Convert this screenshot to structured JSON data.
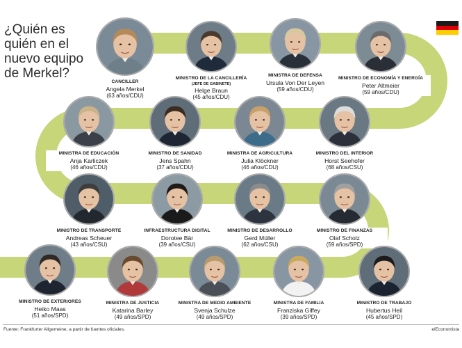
{
  "title_lines": [
    "¿Quién es",
    "quién en el",
    "nuevo equipo",
    "de Merkel?"
  ],
  "colors": {
    "path": "#c6d678",
    "flag_black": "#1a1a1a",
    "flag_red": "#dd0000",
    "flag_gold": "#ffce00",
    "photo_border": "#a9a9a9"
  },
  "people": [
    {
      "role": "CANCILLER",
      "subrole": "",
      "name": "Angela Merkel",
      "info": "(63 años/CDU)",
      "icon": "portrait-merkel"
    },
    {
      "role": "MINISTRO DE LA CANCILLERÍA",
      "subrole": "(JEFE DE GABINETE)",
      "name": "Helge Braun",
      "info": "(45 años/CDU)",
      "icon": "portrait-braun"
    },
    {
      "role": "MINISTRA DE DEFENSA",
      "subrole": "",
      "name": "Ursula Von Der Leyen",
      "info": "(59 años/CDU)",
      "icon": "portrait-von-der-leyen"
    },
    {
      "role": "MINISTRO DE ECONOMÍA Y ENERGÍA",
      "subrole": "",
      "name": "Peter Altmeier",
      "info": "(59 años/CDU)",
      "icon": "portrait-altmeier"
    },
    {
      "role": "MINISTRA DE EDUCACIÓN",
      "subrole": "",
      "name": "Anja Karliczek",
      "info": "(46 años/CDU)",
      "icon": "portrait-karliczek"
    },
    {
      "role": "MINISTRO DE SANIDAD",
      "subrole": "",
      "name": "Jens Spahn",
      "info": "(37 años/CDU)",
      "icon": "portrait-spahn"
    },
    {
      "role": "MINISTRA DE AGRICULTURA",
      "subrole": "",
      "name": "Julia Klöckner",
      "info": "(46 años/CDU)",
      "icon": "portrait-kloeckner"
    },
    {
      "role": "MINISTRO DEL INTERIOR",
      "subrole": "",
      "name": "Horst Seehofer",
      "info": "(68 años/CSU)",
      "icon": "portrait-seehofer"
    },
    {
      "role": "MINISTRO DE TRANSPORTE",
      "subrole": "",
      "name": "Andreas Scheuer",
      "info": "(43 años/CSU)",
      "icon": "portrait-scheuer"
    },
    {
      "role": "INFRAESTRUCTURA DIGITAL",
      "subrole": "",
      "name": "Dorotee Bär",
      "info": "(39 años/CSU)",
      "icon": "portrait-baer"
    },
    {
      "role": "MINISTRO DE DESARROLLO",
      "subrole": "",
      "name": "Gerd Müller",
      "info": "(62 años/CSU)",
      "icon": "portrait-mueller"
    },
    {
      "role": "MINISTRO DE FINANZAS",
      "subrole": "",
      "name": "Olaf Scholz",
      "info": "(59 años/SPD)",
      "icon": "portrait-scholz"
    },
    {
      "role": "MINISTRO DE EXTERIORES",
      "subrole": "",
      "name": "Heiko Maas",
      "info": "(51 años/SPD)",
      "icon": "portrait-maas"
    },
    {
      "role": "MINISTRA DE JUSTICIA",
      "subrole": "",
      "name": "Katarina Barley",
      "info": "(49 años/SPD)",
      "icon": "portrait-barley"
    },
    {
      "role": "MINISTRA DE MEDIO AMBIENTE",
      "subrole": "",
      "name": "Svenja Schulze",
      "info": "(49 años/SPD)",
      "icon": "portrait-schulze"
    },
    {
      "role": "MINISTRA DE FAMILIA",
      "subrole": "",
      "name": "Franziska Giffey",
      "info": "(39 años/SPD)",
      "icon": "portrait-giffey"
    },
    {
      "role": "MINISTRO DE TRABAJO",
      "subrole": "",
      "name": "Hubertus Heil",
      "info": "(45 años/SPD)",
      "icon": "portrait-heil"
    }
  ],
  "source": "Fuente: Frankfurter Allgemeine, a partir de fuentes oficiales.",
  "brand": "elEconomista"
}
